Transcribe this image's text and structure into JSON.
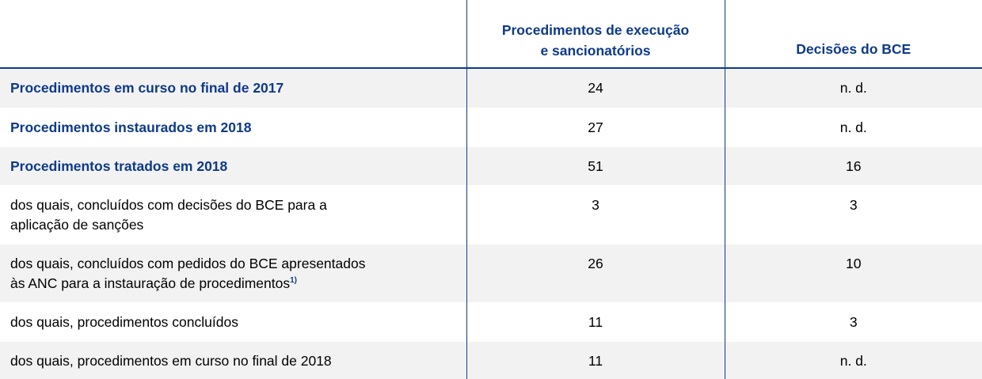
{
  "table": {
    "headers": [
      "",
      "Procedimentos de execução e sancionatórios",
      "Decisões do BCE"
    ],
    "header_lines": {
      "col2_line1": "Procedimentos de execução",
      "col2_line2": "e sancionatórios",
      "col3": "Decisões do BCE"
    },
    "rows": [
      {
        "label": "Procedimentos em curso no final de 2017",
        "procedimentos": "24",
        "decisoes": "n. d.",
        "style": "bold-blue",
        "shaded": true
      },
      {
        "label": "Procedimentos instaurados em 2018",
        "procedimentos": "27",
        "decisoes": "n. d.",
        "style": "bold-blue",
        "shaded": false
      },
      {
        "label": "Procedimentos tratados em 2018",
        "procedimentos": "51",
        "decisoes": "16",
        "style": "bold-blue",
        "shaded": true
      },
      {
        "label_line1": "dos quais, concluídos com decisões do BCE para a",
        "label_line2": "aplicação de sanções",
        "procedimentos": "3",
        "decisoes": "3",
        "style": "normal",
        "shaded": false
      },
      {
        "label_line1": "dos quais, concluídos com pedidos do BCE apresentados",
        "label_line2": "às ANC para a instauração de procedimentos",
        "footnote": "1)",
        "procedimentos": "26",
        "decisoes": "10",
        "style": "normal",
        "shaded": true
      },
      {
        "label": "dos quais, procedimentos concluídos",
        "procedimentos": "11",
        "decisoes": "3",
        "style": "normal",
        "shaded": false
      },
      {
        "label": "dos quais, procedimentos em curso no final de 2018",
        "procedimentos": "11",
        "decisoes": "n. d.",
        "style": "normal",
        "shaded": true
      }
    ]
  },
  "colors": {
    "accent": "#0e3a8a",
    "row_shade": "#f2f2f2"
  }
}
